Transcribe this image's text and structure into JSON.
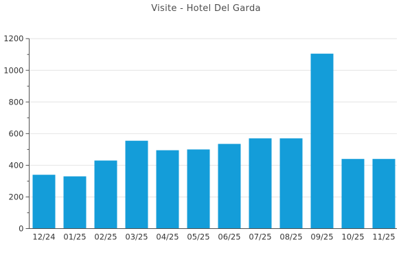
{
  "title": "Visite - Hotel Del Garda",
  "colors": {
    "bar": "#149dd9",
    "axis": "#4f4f4f",
    "grid": "#e4e4e4",
    "title_text": "#4d4d4d",
    "tick_text": "#333333",
    "background": "#ffffff"
  },
  "chart_data": {
    "type": "bar",
    "title": "Visite - Hotel Del Garda",
    "categories": [
      "12/24",
      "01/25",
      "02/25",
      "03/25",
      "04/25",
      "05/25",
      "06/25",
      "07/25",
      "08/25",
      "09/25",
      "10/25",
      "11/25"
    ],
    "values": [
      340,
      330,
      430,
      555,
      495,
      500,
      535,
      570,
      570,
      1105,
      440,
      440
    ],
    "xlabel": "",
    "ylabel": "",
    "ylim": [
      0,
      1200
    ],
    "ytick_step": 200,
    "yminor_step": 100,
    "ytick_labels": [
      "0",
      "200",
      "400",
      "600",
      "800",
      "1000",
      "1200"
    ],
    "grid": "horizontal",
    "legend": "none",
    "bar_color": "#149dd9"
  }
}
